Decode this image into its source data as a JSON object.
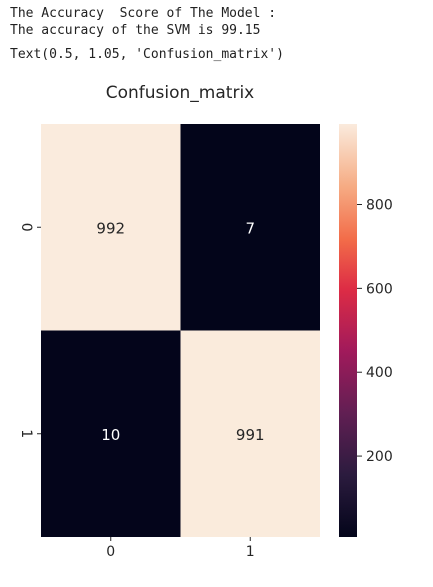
{
  "output": {
    "lines": [
      "The Accuracy  Score of The Model :",
      "The accuracy of the SVM is 99.15",
      "Text(0.5, 1.05, 'Confusion_matrix')"
    ]
  },
  "chart_data": {
    "type": "heatmap",
    "title": "Confusion_matrix",
    "x_categories": [
      "0",
      "1"
    ],
    "y_categories": [
      "0",
      "1"
    ],
    "values": [
      [
        992,
        7
      ],
      [
        10,
        991
      ]
    ],
    "annotations": [
      "992",
      "7",
      "10",
      "991"
    ],
    "colorbar": {
      "range": [
        7,
        992
      ],
      "ticks": [
        200,
        400,
        600,
        800
      ],
      "colormap": "rocket"
    },
    "grid": false,
    "legend": "none"
  }
}
